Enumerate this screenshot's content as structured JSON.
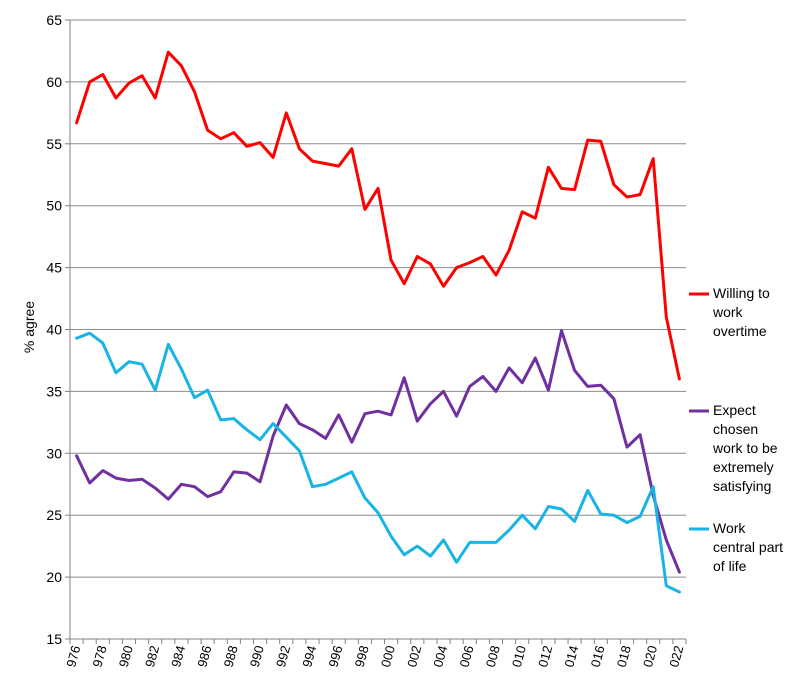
{
  "chart_data": {
    "type": "line",
    "title": "",
    "xlabel": "",
    "ylabel": "% agree",
    "ylim": [
      15,
      65
    ],
    "yticks": [
      "15",
      "20",
      "25",
      "30",
      "35",
      "40",
      "45",
      "50",
      "55",
      "60",
      "65"
    ],
    "grid": true,
    "legend_position": "right",
    "x": [
      1976,
      1977,
      1978,
      1979,
      1980,
      1981,
      1982,
      1983,
      1984,
      1985,
      1986,
      1987,
      1988,
      1989,
      1990,
      1991,
      1992,
      1993,
      1994,
      1995,
      1996,
      1997,
      1998,
      1999,
      2000,
      2001,
      2002,
      2003,
      2004,
      2005,
      2006,
      2007,
      2008,
      2009,
      2010,
      2011,
      2012,
      2013,
      2014,
      2015,
      2016,
      2017,
      2018,
      2019,
      2020,
      2021,
      2022
    ],
    "xtick_labels": [
      "976",
      "978",
      "980",
      "982",
      "984",
      "986",
      "988",
      "990",
      "992",
      "994",
      "996",
      "998",
      "000",
      "002",
      "004",
      "006",
      "008",
      "010",
      "012",
      "014",
      "016",
      "018",
      "020",
      "022"
    ],
    "series": [
      {
        "name": "Willing to work overtime",
        "legend_lines": [
          "Willing to",
          "work",
          "overtime"
        ],
        "color": "#ff0000",
        "values": [
          56.7,
          60.0,
          60.6,
          58.7,
          59.9,
          60.5,
          58.7,
          62.4,
          61.3,
          59.2,
          56.1,
          55.4,
          55.9,
          54.8,
          55.1,
          53.9,
          57.5,
          54.6,
          53.6,
          53.4,
          53.2,
          54.6,
          49.7,
          51.4,
          45.6,
          43.7,
          45.9,
          45.3,
          43.5,
          45.0,
          45.4,
          45.9,
          44.4,
          46.4,
          49.5,
          49.0,
          53.1,
          51.4,
          51.3,
          55.3,
          55.2,
          51.7,
          50.7,
          50.9,
          53.8,
          41.0,
          36.0
        ]
      },
      {
        "name": "Expect chosen work to be extremely satisfying",
        "legend_lines": [
          "Expect",
          "chosen",
          "work to be",
          "extremely",
          "satisfying"
        ],
        "color": "#7030a0",
        "values": [
          29.8,
          27.6,
          28.6,
          28.0,
          27.8,
          27.9,
          27.2,
          26.3,
          27.5,
          27.3,
          26.5,
          26.9,
          28.5,
          28.4,
          27.7,
          31.4,
          33.9,
          32.4,
          31.9,
          31.2,
          33.1,
          30.9,
          33.2,
          33.4,
          33.1,
          36.1,
          32.6,
          34.0,
          35.0,
          33.0,
          35.4,
          36.2,
          35.0,
          36.9,
          35.7,
          37.7,
          35.1,
          39.9,
          36.7,
          35.4,
          35.5,
          34.4,
          30.5,
          31.5,
          26.6,
          23.0,
          20.4
        ]
      },
      {
        "name": "Work central part of life",
        "legend_lines": [
          "Work",
          "central part",
          "of life"
        ],
        "color": "#18b4e6",
        "values": [
          39.3,
          39.7,
          38.9,
          36.5,
          37.4,
          37.2,
          35.1,
          38.8,
          36.8,
          34.5,
          35.1,
          32.7,
          32.8,
          31.9,
          31.1,
          32.4,
          31.3,
          30.2,
          27.3,
          27.5,
          28.0,
          28.5,
          26.4,
          25.2,
          23.3,
          21.8,
          22.5,
          21.7,
          23.0,
          21.2,
          22.8,
          22.8,
          22.8,
          23.8,
          25.0,
          23.9,
          25.7,
          25.5,
          24.5,
          27.0,
          25.1,
          25.0,
          24.4,
          24.9,
          27.3,
          19.3,
          18.8
        ]
      }
    ]
  }
}
